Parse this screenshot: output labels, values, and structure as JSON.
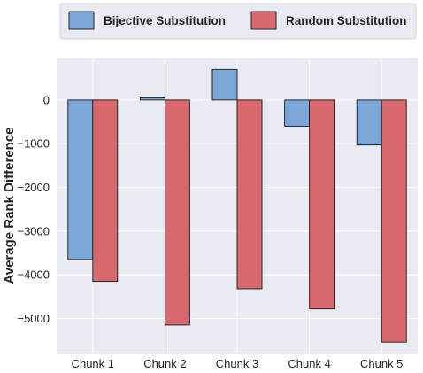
{
  "chart_data": {
    "type": "bar",
    "title": "",
    "xlabel": "",
    "ylabel": "Average Rank Difference",
    "categories": [
      "Chunk 1",
      "Chunk 2",
      "Chunk 3",
      "Chunk 4",
      "Chunk 5"
    ],
    "series": [
      {
        "name": "Bijective Substitution",
        "color": "#7aa6d8",
        "values": [
          -3650,
          50,
          700,
          -600,
          -1030
        ]
      },
      {
        "name": "Random Substitution",
        "color": "#d6686e",
        "values": [
          -4150,
          -5150,
          -4320,
          -4780,
          -5540
        ]
      }
    ],
    "yticks": [
      0,
      -1000,
      -2000,
      -3000,
      -4000,
      -5000
    ],
    "ytick_labels": [
      "0",
      "−1000",
      "−2000",
      "−3000",
      "−4000",
      "−5000"
    ],
    "ylim": [
      -5800,
      950
    ],
    "grid": true,
    "legend_position": "top"
  }
}
